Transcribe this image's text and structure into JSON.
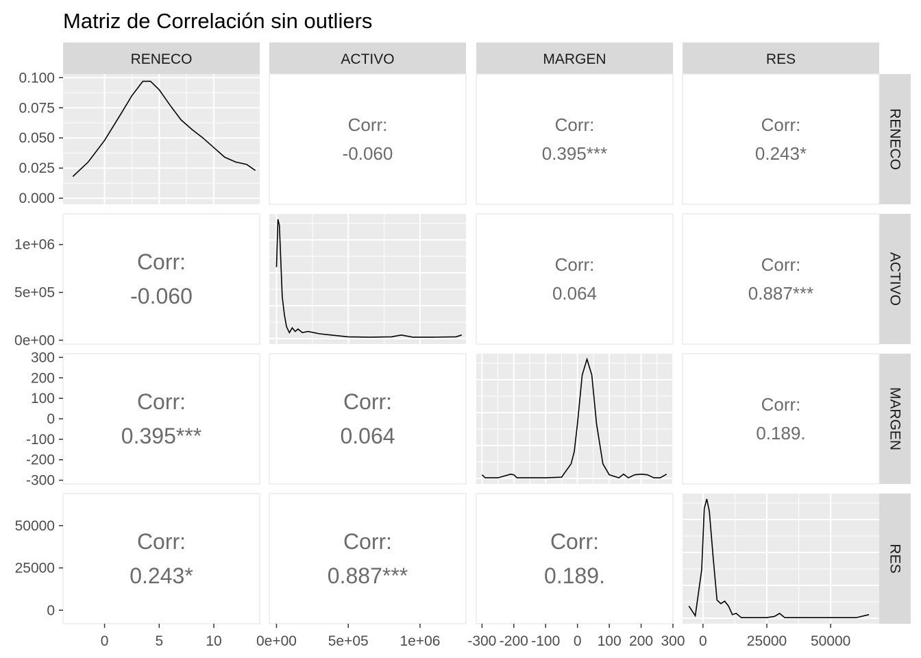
{
  "chart_data": {
    "type": "pairs-matrix",
    "title": "Matriz de Correlación sin outliers",
    "variables": [
      "RENECO",
      "ACTIVO",
      "MARGEN",
      "RES"
    ],
    "corr_label": "Corr:",
    "correlations": [
      {
        "row": "ACTIVO",
        "col": "RENECO",
        "value": "-0.060"
      },
      {
        "row": "MARGEN",
        "col": "RENECO",
        "value": "0.395***"
      },
      {
        "row": "MARGEN",
        "col": "ACTIVO",
        "value": "0.064"
      },
      {
        "row": "RES",
        "col": "RENECO",
        "value": "0.243*"
      },
      {
        "row": "RES",
        "col": "ACTIVO",
        "value": "0.887***"
      },
      {
        "row": "RES",
        "col": "MARGEN",
        "value": "0.189."
      }
    ],
    "x_axes": [
      {
        "var": "RENECO",
        "range": [
          -3.8,
          14.2
        ],
        "ticks": [
          0,
          5,
          10
        ],
        "tick_labels": [
          "0",
          "5",
          "10"
        ]
      },
      {
        "var": "ACTIVO",
        "range": [
          -50000,
          1320000
        ],
        "ticks": [
          0,
          500000,
          1000000
        ],
        "tick_labels": [
          "0e+00",
          "5e+05",
          "1e+06"
        ]
      },
      {
        "var": "MARGEN",
        "range": [
          -318,
          300
        ],
        "ticks": [
          -300,
          -200,
          -100,
          0,
          100,
          200,
          300
        ],
        "tick_labels": [
          "-300",
          "-200",
          "-100",
          "0",
          "100",
          "200",
          "300"
        ]
      },
      {
        "var": "RES",
        "range": [
          -8000,
          69000
        ],
        "ticks": [
          0,
          25000,
          50000
        ],
        "tick_labels": [
          "0",
          "25000",
          "50000"
        ]
      }
    ],
    "y_axes": [
      {
        "var": "RENECO",
        "range": [
          -0.005,
          0.103
        ],
        "ticks": [
          0,
          0.025,
          0.05,
          0.075,
          0.1
        ],
        "tick_labels": [
          "0.000",
          "0.025",
          "0.050",
          "0.075",
          "0.100"
        ]
      },
      {
        "var": "ACTIVO",
        "range": [
          -40000,
          1320000
        ],
        "ticks": [
          0,
          500000,
          1000000
        ],
        "tick_labels": [
          "0e+00",
          "5e+05",
          "1e+06"
        ]
      },
      {
        "var": "MARGEN",
        "range": [
          -318,
          318
        ],
        "ticks": [
          -300,
          -200,
          -100,
          0,
          100,
          200,
          300
        ],
        "tick_labels": [
          "-300",
          "-200",
          "-100",
          "0",
          "100",
          "200",
          "300"
        ]
      },
      {
        "var": "RES",
        "range": [
          -8000,
          69000
        ],
        "ticks": [
          0,
          25000,
          50000
        ],
        "tick_labels": [
          "0",
          "25000",
          "50000"
        ]
      }
    ],
    "densities": [
      {
        "var": "RENECO",
        "x": [
          -2.9,
          -1.5,
          0,
          1.5,
          2.5,
          3.5,
          4.2,
          5,
          6,
          7,
          8,
          9,
          10,
          11,
          12,
          13,
          13.8
        ],
        "y": [
          0.018,
          0.03,
          0.048,
          0.07,
          0.085,
          0.097,
          0.097,
          0.09,
          0.077,
          0.065,
          0.057,
          0.05,
          0.042,
          0.034,
          0.03,
          0.028,
          0.023
        ]
      },
      {
        "var": "ACTIVO",
        "x": [
          0,
          10000,
          20000,
          30000,
          40000,
          55000,
          70000,
          90000,
          110000,
          130000,
          150000,
          180000,
          220000,
          300000,
          380000,
          500000,
          650000,
          800000,
          870000,
          950000,
          1100000,
          1250000,
          1290000
        ],
        "y": [
          0.6,
          1.0,
          0.95,
          0.65,
          0.35,
          0.2,
          0.1,
          0.05,
          0.09,
          0.06,
          0.08,
          0.05,
          0.06,
          0.04,
          0.03,
          0.015,
          0.012,
          0.015,
          0.03,
          0.012,
          0.012,
          0.015,
          0.03
        ]
      },
      {
        "var": "MARGEN",
        "x": [
          -300,
          -290,
          -250,
          -210,
          -200,
          -190,
          -150,
          -100,
          -50,
          -20,
          -10,
          0,
          15,
          30,
          45,
          60,
          80,
          100,
          130,
          145,
          160,
          180,
          200,
          220,
          240,
          260,
          280
        ],
        "y": [
          0.03,
          0.005,
          0.005,
          0.035,
          0.03,
          0.005,
          0.005,
          0.005,
          0.01,
          0.12,
          0.22,
          0.45,
          0.85,
          0.98,
          0.85,
          0.45,
          0.12,
          0.03,
          0.005,
          0.035,
          0.005,
          0.03,
          0.035,
          0.03,
          0.005,
          0.005,
          0.035
        ]
      },
      {
        "var": "RES",
        "x": [
          -5500,
          -3000,
          -500,
          500,
          1500,
          2500,
          4000,
          5500,
          7000,
          8500,
          10000,
          11500,
          13000,
          15000,
          20000,
          25000,
          28000,
          30000,
          32000,
          40000,
          50000,
          60000,
          65000
        ],
        "y": [
          0.1,
          0.02,
          0.4,
          0.9,
          0.98,
          0.88,
          0.5,
          0.15,
          0.12,
          0.14,
          0.1,
          0.03,
          0.04,
          0.005,
          0.005,
          0.005,
          0.015,
          0.04,
          0.005,
          0.005,
          0.005,
          0.005,
          0.03
        ]
      }
    ]
  }
}
